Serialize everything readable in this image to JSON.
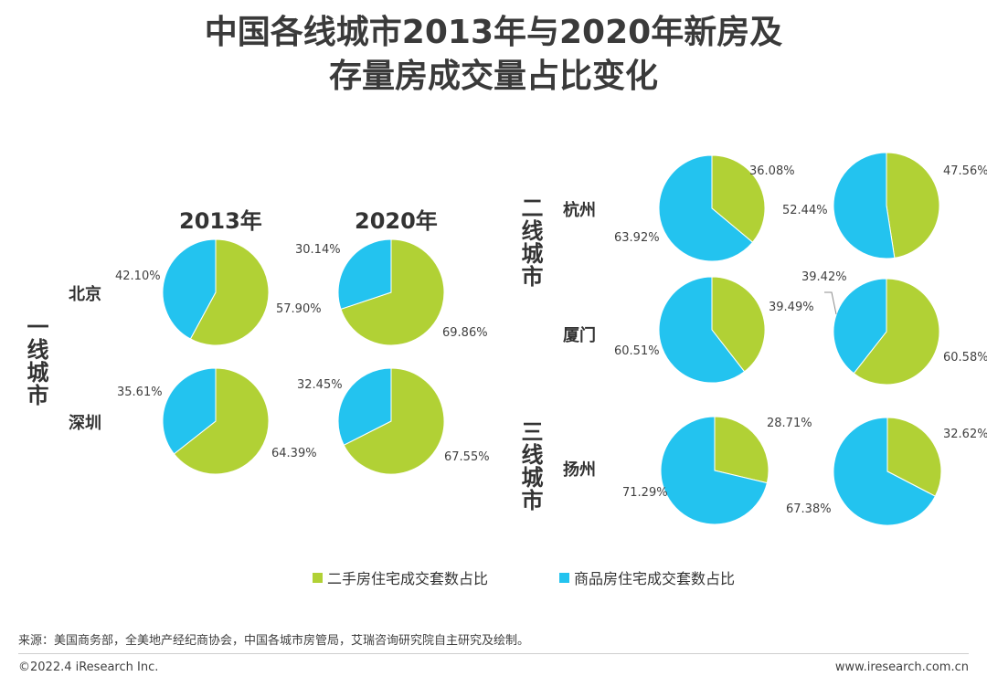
{
  "title_line1": "中国各线城市2013年与2020年新房及",
  "title_line2": "存量房成交量占比变化",
  "colors": {
    "second_hand": "#b1d135",
    "new_home": "#23c3ef"
  },
  "headers": {
    "year1": "2013年",
    "year2": "2020年"
  },
  "tiers": {
    "tier1": "一线城市",
    "tier2": "二线城市",
    "tier3": "三线城市"
  },
  "cities": {
    "beijing": "北京",
    "shenzhen": "深圳",
    "hangzhou": "杭州",
    "xiamen": "厦门",
    "yangzhou": "扬州"
  },
  "legend": {
    "second_hand": "二手房住宅成交套数占比",
    "new_home": "商品房住宅成交套数占比"
  },
  "source": "来源：美国商务部，全美地产经纪商协会，中国各城市房管局，艾瑞咨询研究院自主研究及绘制。",
  "footer": {
    "left": "©2022.4 iResearch Inc.",
    "right": "www.iresearch.com.cn"
  },
  "chart_data": [
    {
      "type": "pie",
      "city": "北京",
      "year": "2013年",
      "slices": [
        {
          "name": "二手房住宅成交套数占比",
          "value": 57.9,
          "label": "57.90%"
        },
        {
          "name": "商品房住宅成交套数占比",
          "value": 42.1,
          "label": "42.10%"
        }
      ]
    },
    {
      "type": "pie",
      "city": "北京",
      "year": "2020年",
      "slices": [
        {
          "name": "二手房住宅成交套数占比",
          "value": 69.86,
          "label": "69.86%"
        },
        {
          "name": "商品房住宅成交套数占比",
          "value": 30.14,
          "label": "30.14%"
        }
      ]
    },
    {
      "type": "pie",
      "city": "深圳",
      "year": "2013年",
      "slices": [
        {
          "name": "二手房住宅成交套数占比",
          "value": 64.39,
          "label": "64.39%"
        },
        {
          "name": "商品房住宅成交套数占比",
          "value": 35.61,
          "label": "35.61%"
        }
      ]
    },
    {
      "type": "pie",
      "city": "深圳",
      "year": "2020年",
      "slices": [
        {
          "name": "二手房住宅成交套数占比",
          "value": 67.55,
          "label": "67.55%"
        },
        {
          "name": "商品房住宅成交套数占比",
          "value": 32.45,
          "label": "32.45%"
        }
      ]
    },
    {
      "type": "pie",
      "city": "杭州",
      "year": "2013年",
      "slices": [
        {
          "name": "二手房住宅成交套数占比",
          "value": 36.08,
          "label": "36.08%"
        },
        {
          "name": "商品房住宅成交套数占比",
          "value": 63.92,
          "label": "63.92%"
        }
      ]
    },
    {
      "type": "pie",
      "city": "杭州",
      "year": "2020年",
      "slices": [
        {
          "name": "二手房住宅成交套数占比",
          "value": 47.56,
          "label": "47.56%"
        },
        {
          "name": "商品房住宅成交套数占比",
          "value": 52.44,
          "label": "52.44%"
        }
      ]
    },
    {
      "type": "pie",
      "city": "厦门",
      "year": "2013年",
      "slices": [
        {
          "name": "二手房住宅成交套数占比",
          "value": 39.49,
          "label": "39.49%"
        },
        {
          "name": "商品房住宅成交套数占比",
          "value": 60.51,
          "label": "60.51%"
        }
      ]
    },
    {
      "type": "pie",
      "city": "厦门",
      "year": "2020年",
      "slices": [
        {
          "name": "二手房住宅成交套数占比",
          "value": 60.58,
          "label": "60.58%"
        },
        {
          "name": "商品房住宅成交套数占比",
          "value": 39.42,
          "label": "39.42%"
        }
      ]
    },
    {
      "type": "pie",
      "city": "扬州",
      "year": "2013年",
      "slices": [
        {
          "name": "二手房住宅成交套数占比",
          "value": 28.71,
          "label": "28.71%"
        },
        {
          "name": "商品房住宅成交套数占比",
          "value": 71.29,
          "label": "71.29%"
        }
      ]
    },
    {
      "type": "pie",
      "city": "扬州",
      "year": "2020年",
      "slices": [
        {
          "name": "二手房住宅成交套数占比",
          "value": 32.62,
          "label": "32.62%"
        },
        {
          "name": "商品房住宅成交套数占比",
          "value": 67.38,
          "label": "67.38%"
        }
      ]
    }
  ]
}
